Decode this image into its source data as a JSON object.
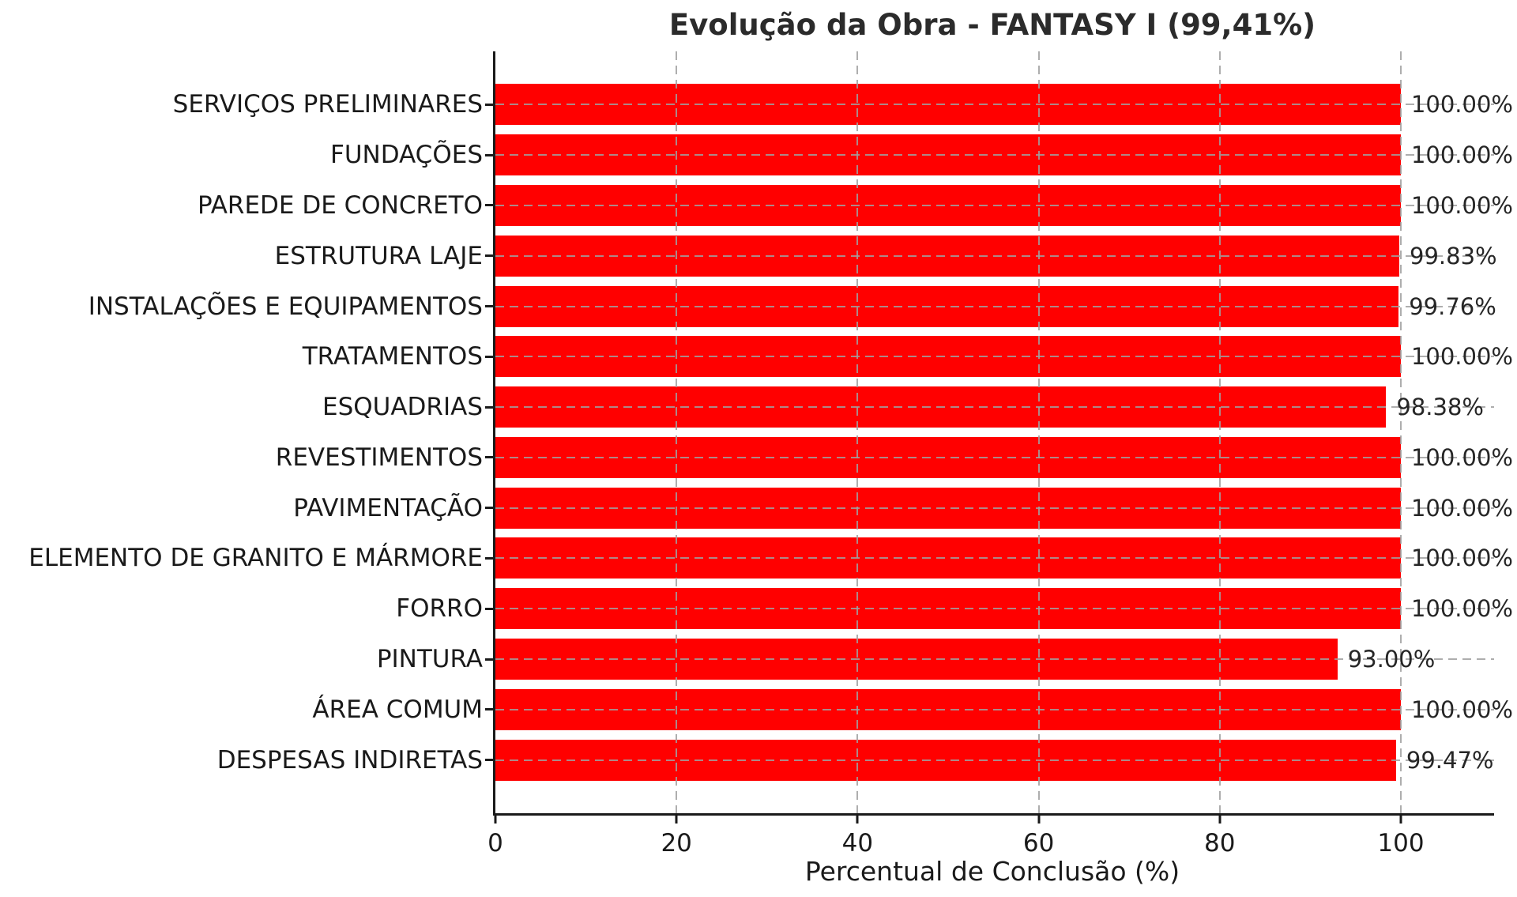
{
  "chart_data": {
    "type": "bar",
    "orientation": "horizontal",
    "title": "Evolução da Obra - FANTASY I (99,41%)",
    "xlabel": "Percentual de Conclusão (%)",
    "categories": [
      "SERVIÇOS PRELIMINARES",
      "FUNDAÇÕES",
      "PAREDE DE CONCRETO",
      "ESTRUTURA LAJE",
      "INSTALAÇÕES E EQUIPAMENTOS",
      "TRATAMENTOS",
      "ESQUADRIAS",
      "REVESTIMENTOS",
      "PAVIMENTAÇÃO",
      "ELEMENTO DE GRANITO E MÁRMORE",
      "FORRO",
      "PINTURA",
      "ÁREA COMUM",
      "DESPESAS INDIRETAS"
    ],
    "values": [
      100.0,
      100.0,
      100.0,
      99.83,
      99.76,
      100.0,
      98.38,
      100.0,
      100.0,
      100.0,
      100.0,
      93.0,
      100.0,
      99.47
    ],
    "value_labels": [
      "100.00%",
      "100.00%",
      "100.00%",
      "99.83%",
      "99.76%",
      "100.00%",
      "98.38%",
      "100.00%",
      "100.00%",
      "100.00%",
      "100.00%",
      "93.00%",
      "100.00%",
      "99.47%"
    ],
    "xticks": [
      0,
      20,
      40,
      60,
      80,
      100
    ],
    "xlim": [
      0,
      110.3
    ],
    "bar_color": "#ff0000",
    "grid_style": "dashed",
    "grid_color": "#a0a0a0",
    "background": "#ffffff"
  }
}
